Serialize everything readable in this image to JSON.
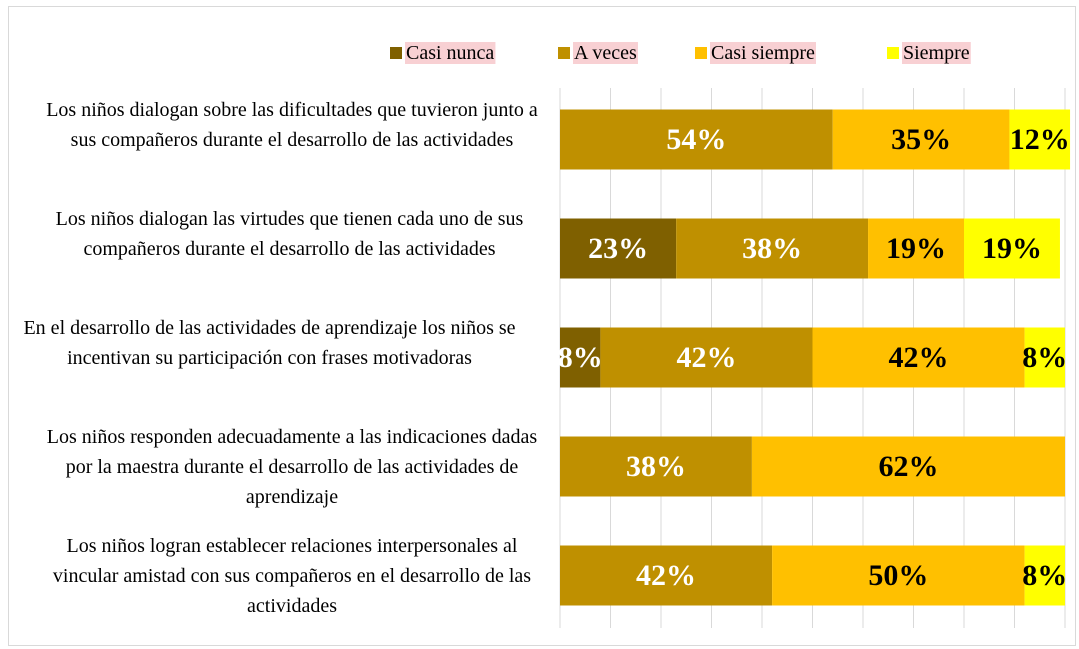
{
  "chart_data": {
    "type": "stacked_barh",
    "categories": [
      "Los niños dialogan sobre las dificultades que tuvieron junto a sus compañeros durante el desarrollo de las actividades",
      "Los niños dialogan las virtudes que tienen cada uno de sus compañeros durante el desarrollo de las actividades",
      "En el desarrollo de las actividades de aprendizaje los niños se incentivan su participación con frases motivadoras",
      "Los niños responden adecuadamente a las indicaciones dadas por la maestra durante el desarrollo de las actividades de aprendizaje",
      "Los niños logran establecer relaciones interpersonales al vincular amistad con sus compañeros en el desarrollo de las actividades"
    ],
    "series": [
      {
        "name": "Casi nunca",
        "color": "#7f6000",
        "values": [
          0,
          23,
          8,
          0,
          0
        ],
        "value_labels": [
          null,
          "23%",
          "8%",
          null,
          null
        ]
      },
      {
        "name": "A veces",
        "color": "#bf9000",
        "values": [
          54,
          38,
          42,
          38,
          42
        ],
        "value_labels": [
          "54%",
          "38%",
          "42%",
          "38%",
          "42%"
        ]
      },
      {
        "name": "Casi siempre",
        "color": "#ffc000",
        "values": [
          35,
          19,
          42,
          62,
          50
        ],
        "value_labels": [
          "35%",
          "19%",
          "42%",
          "62%",
          "50%"
        ]
      },
      {
        "name": "Siempre",
        "color": "#ffff00",
        "values": [
          12,
          19,
          8,
          0,
          8
        ],
        "value_labels": [
          "12%",
          "19%",
          "8%",
          null,
          "8%"
        ]
      }
    ],
    "xlim": [
      0,
      100
    ],
    "xticks": [
      0,
      10,
      20,
      30,
      40,
      50,
      60,
      70,
      80,
      90,
      100
    ],
    "grid": true,
    "legend": "top"
  }
}
